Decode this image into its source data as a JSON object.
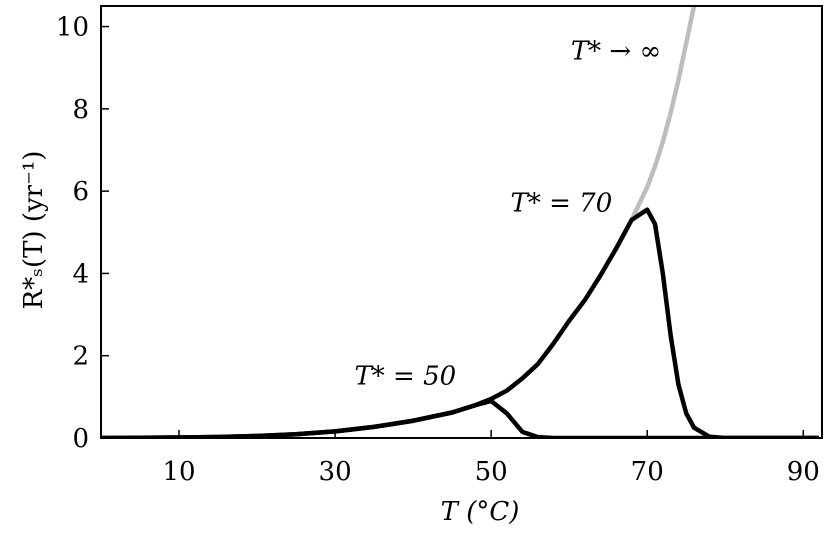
{
  "chart_data": {
    "type": "line",
    "x": [
      0,
      5,
      10,
      15,
      20,
      25,
      30,
      35,
      40,
      45,
      48,
      50,
      52,
      54,
      56,
      58,
      60,
      62,
      64,
      66,
      68,
      70,
      71,
      72,
      73,
      74,
      75,
      76,
      78,
      80,
      85,
      92
    ],
    "series": [
      {
        "color": "#bdbdbd",
        "values": [
          null,
          null,
          null,
          null,
          null,
          null,
          null,
          null,
          null,
          null,
          null,
          null,
          null,
          null,
          null,
          null,
          null,
          null,
          null,
          null,
          5.3,
          6.1,
          6.6,
          7.2,
          7.9,
          8.7,
          9.6,
          10.5,
          null,
          null,
          null,
          null
        ]
      },
      {
        "color": "#000000",
        "values": [
          0,
          0.005,
          0.012,
          0.025,
          0.05,
          0.09,
          0.16,
          0.27,
          0.42,
          0.62,
          0.8,
          0.9,
          0.6,
          0.15,
          0.02,
          0,
          0,
          0,
          0,
          0,
          0,
          0,
          0,
          0,
          0,
          0,
          0,
          0,
          0,
          0,
          0,
          0
        ]
      },
      {
        "color": "#000000",
        "values": [
          0,
          0.005,
          0.012,
          0.025,
          0.05,
          0.09,
          0.16,
          0.27,
          0.42,
          0.62,
          0.8,
          0.95,
          1.15,
          1.45,
          1.8,
          2.3,
          2.85,
          3.35,
          3.95,
          4.6,
          5.3,
          5.55,
          5.2,
          4.0,
          2.5,
          1.3,
          0.6,
          0.25,
          0.03,
          0,
          0,
          0
        ]
      }
    ],
    "xlim": [
      0,
      92.4
    ],
    "ylim": [
      0,
      10.5
    ],
    "xticks": [
      10,
      30,
      50,
      70,
      90
    ],
    "yticks": [
      0,
      2,
      4,
      6,
      8,
      10
    ],
    "x_label": "T (°C)",
    "y_label": "R*ₛ(T)  (yr⁻¹)",
    "annotations": [
      {
        "text": "T* → ∞",
        "x": 66,
        "y": 9.2
      },
      {
        "text": "T* = 70",
        "x": 59,
        "y": 5.5
      },
      {
        "text": "T* = 50",
        "x": 39,
        "y": 1.3
      }
    ]
  }
}
